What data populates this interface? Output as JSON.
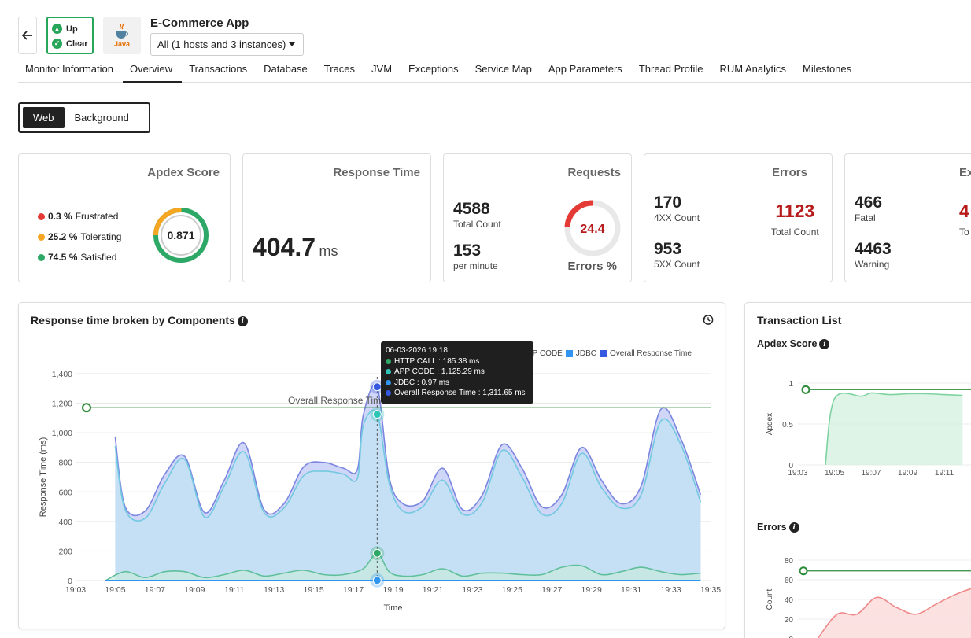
{
  "header": {
    "status_up": "Up",
    "status_clear": "Clear",
    "logo_text": "Java",
    "app_title": "E-Commerce App",
    "instances": "All (1 hosts and 3 instances)"
  },
  "tabs": [
    "Monitor Information",
    "Overview",
    "Transactions",
    "Database",
    "Traces",
    "JVM",
    "Exceptions",
    "Service Map",
    "App Parameters",
    "Thread Profile",
    "RUM Analytics",
    "Milestones"
  ],
  "toggle": {
    "web": "Web",
    "background": "Background"
  },
  "apdex": {
    "title": "Apdex Score",
    "score": "0.871",
    "items": [
      {
        "pct": "0.3 %",
        "label": "Frustrated",
        "color": "#e53935"
      },
      {
        "pct": "25.2 %",
        "label": "Tolerating",
        "color": "#f5a623"
      },
      {
        "pct": "74.5 %",
        "label": "Satisfied",
        "color": "#2ea866"
      }
    ]
  },
  "response_time": {
    "title": "Response Time",
    "value": "404.7",
    "unit": "ms"
  },
  "requests": {
    "title": "Requests",
    "total": "4588",
    "total_label": "Total Count",
    "per_min": "153",
    "per_min_label": "per minute",
    "errors_pct": "24.4",
    "errors_label": "Errors %"
  },
  "errors": {
    "title": "Errors",
    "c4xx": "170",
    "c4xx_label": "4XX Count",
    "c5xx": "953",
    "c5xx_label": "5XX Count",
    "total": "1123",
    "total_label": "Total Count"
  },
  "exceptions": {
    "title": "Ex",
    "fatal": "466",
    "fatal_label": "Fatal",
    "warning": "4463",
    "warning_label": "Warning",
    "total_partial": "4",
    "total_partial_label": "To"
  },
  "main_chart": {
    "title": "Response time broken by Components",
    "tooltip": {
      "date": "06-03-2026 19:18",
      "rows": [
        {
          "text": "HTTP CALL : 185.38 ms",
          "color": "#2ea866"
        },
        {
          "text": "APP CODE : 1,125.29 ms",
          "color": "#2ec4b6"
        },
        {
          "text": "JDBC : 0.97 ms",
          "color": "#2f95f0"
        },
        {
          "text": "Overall Response Time : 1,311.65 ms",
          "color": "#3559e0"
        }
      ]
    },
    "legend": {
      "app_code_partial": "PP CODE",
      "jdbc": "JDBC",
      "overall": "Overall Response Time"
    },
    "threshold_label": "Overall Response Time"
  },
  "transaction_list": {
    "title": "Transaction List",
    "apdex_title": "Apdex Score",
    "errors_title": "Errors"
  },
  "chart_data": [
    {
      "type": "area",
      "title": "Response time broken by Components",
      "xlabel": "Time",
      "ylabel": "Response Time (ms)",
      "ylim": [
        0,
        1400
      ],
      "yticks": [
        0,
        200,
        400,
        600,
        800,
        1000,
        1200,
        1400
      ],
      "xticks": [
        "19:03",
        "19:05",
        "19:07",
        "19:09",
        "19:11",
        "19:13",
        "19:15",
        "19:17",
        "19:19",
        "19:21",
        "19:23",
        "19:25",
        "19:27",
        "19:29",
        "19:31",
        "19:33",
        "19:35"
      ],
      "threshold": 1170,
      "series": [
        {
          "name": "Overall Response Time",
          "color": "#7b86e0",
          "x": [
            5,
            5.5,
            6.5,
            7.5,
            8.5,
            9.5,
            10.5,
            11.5,
            12.5,
            13.5,
            14.5,
            15.5,
            16.5,
            17.2,
            17.5,
            18.2,
            18.8,
            19.5,
            20.5,
            21.5,
            22.5,
            23.5,
            24.5,
            25.5,
            26.5,
            27.5,
            28.5,
            29.5,
            30.5,
            31.5,
            32.5,
            33.5,
            34.5
          ],
          "y": [
            970,
            500,
            470,
            720,
            840,
            460,
            680,
            930,
            480,
            520,
            770,
            800,
            760,
            750,
            1120,
            1311,
            700,
            520,
            540,
            760,
            480,
            580,
            920,
            760,
            500,
            580,
            900,
            680,
            520,
            640,
            1160,
            960,
            580
          ]
        },
        {
          "name": "APP CODE",
          "color": "#72c9e0",
          "x": [
            5,
            5.5,
            6.5,
            7.5,
            8.5,
            9.5,
            10.5,
            11.5,
            12.5,
            13.5,
            14.5,
            15.5,
            16.5,
            17.2,
            17.5,
            18.2,
            18.8,
            19.5,
            20.5,
            21.5,
            22.5,
            23.5,
            24.5,
            25.5,
            26.5,
            27.5,
            28.5,
            29.5,
            30.5,
            31.5,
            32.5,
            33.5,
            34.5
          ],
          "y": [
            910,
            480,
            420,
            660,
            820,
            430,
            640,
            870,
            460,
            490,
            710,
            740,
            720,
            690,
            1050,
            1125,
            660,
            470,
            500,
            680,
            450,
            530,
            880,
            700,
            450,
            520,
            860,
            630,
            490,
            580,
            1080,
            920,
            530
          ]
        },
        {
          "name": "HTTP CALL",
          "color": "#5fbf9a",
          "x": [
            4.5,
            5.5,
            6.5,
            7.5,
            8.5,
            9.5,
            10.5,
            11.5,
            12.5,
            13.5,
            14.5,
            15.5,
            16.5,
            17.5,
            18.2,
            18.8,
            19.5,
            20.5,
            21.5,
            22.5,
            23.5,
            24.5,
            25.5,
            26.5,
            27.5,
            28.5,
            29.5,
            30.5,
            31.5,
            32.5,
            33.5,
            34.5
          ],
          "y": [
            0,
            60,
            20,
            60,
            60,
            20,
            40,
            70,
            30,
            50,
            70,
            40,
            40,
            80,
            185,
            60,
            30,
            40,
            80,
            30,
            50,
            50,
            40,
            40,
            90,
            100,
            40,
            60,
            90,
            60,
            40,
            50
          ]
        },
        {
          "name": "JDBC",
          "color": "#2f95f0",
          "x": [
            4.5,
            34.5
          ],
          "y": [
            1,
            1
          ]
        }
      ]
    },
    {
      "type": "area",
      "title": "Apdex Score",
      "ylabel": "Apdex",
      "ylim": [
        0,
        1
      ],
      "yticks": [
        0,
        0.5,
        1
      ],
      "xticks": [
        "19:03",
        "19:05",
        "19:07",
        "19:09",
        "19:11"
      ],
      "threshold": 0.92,
      "series": [
        {
          "name": "Apdex",
          "color": "#7dd3a0",
          "x": [
            4.5,
            5,
            6.5,
            7,
            8,
            9,
            10,
            11,
            12
          ],
          "y": [
            0,
            0.81,
            0.84,
            0.88,
            0.86,
            0.87,
            0.87,
            0.86,
            0.85
          ]
        }
      ]
    },
    {
      "type": "area",
      "title": "Errors",
      "ylabel": "Count",
      "ylim": [
        0,
        80
      ],
      "yticks": [
        0,
        20,
        40,
        60,
        80
      ],
      "threshold": 69,
      "series": [
        {
          "name": "Errors",
          "color": "#f08a8a",
          "x": [
            0,
            1,
            2,
            3,
            4,
            5,
            6,
            7,
            8,
            9
          ],
          "y": [
            0,
            25,
            25,
            42,
            32,
            25,
            35,
            45,
            52,
            55
          ]
        }
      ]
    }
  ]
}
